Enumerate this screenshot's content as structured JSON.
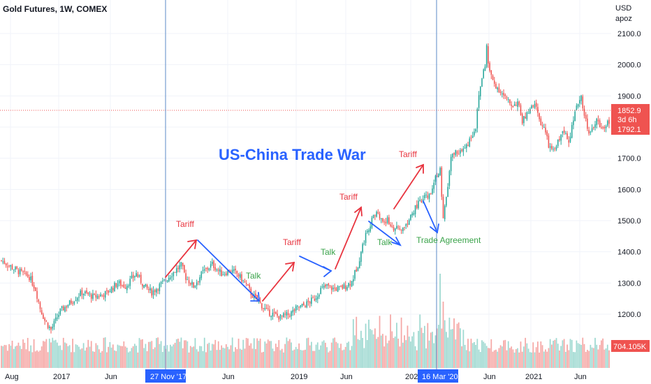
{
  "header": {
    "title": "Gold Futures, 1W, COMEX",
    "currency": "USD",
    "unit": "apoz"
  },
  "price_axis": {
    "ticks": [
      "2100.0",
      "2000.0",
      "1900.0",
      "1800.0",
      "1700.0",
      "1600.0",
      "1500.0",
      "1400.0",
      "1300.0",
      "1200.0"
    ],
    "badges": {
      "last_price": "1852.9",
      "countdown": "3d 6h",
      "close_price": "1792.1",
      "volume": "704.105K"
    }
  },
  "time_axis": {
    "labels": [
      "Aug",
      "2017",
      "Jun",
      "Jun",
      "2019",
      "Jun",
      "202",
      "Jun",
      "2021",
      "Jun"
    ],
    "highlighted": [
      "27 Nov '17",
      "16 Mar '20"
    ]
  },
  "annotations": {
    "main": "US-China Trade War",
    "tariff_1": "Tariff",
    "tariff_2": "Tariff",
    "tariff_3": "Tariff",
    "tariff_4": "Tariff",
    "talk_1": "Talk",
    "talk_2": "Talk",
    "talk_3": "Talk",
    "agreement": "Trade Agreement"
  },
  "colors": {
    "up": "#26a69a",
    "down": "#ef5350",
    "volume_up": "#9fd9d1",
    "volume_down": "#f5a8a6",
    "tariff": "#e8343f",
    "talk": "#2962ff",
    "talk_text": "#3aa34a",
    "marker": "#5b8ac7",
    "badge_blue": "#2962ff",
    "badge_red": "#ef5350"
  },
  "chart_data": {
    "type": "candlestick",
    "symbol": "Gold Futures",
    "interval": "1W",
    "ylim": [
      1130,
      2150
    ],
    "path": [
      [
        0,
        1372
      ],
      [
        10,
        1340
      ],
      [
        18,
        1320
      ],
      [
        22,
        1280
      ],
      [
        25,
        1220
      ],
      [
        28,
        1180
      ],
      [
        32,
        1150
      ],
      [
        38,
        1210
      ],
      [
        45,
        1240
      ],
      [
        52,
        1270
      ],
      [
        60,
        1255
      ],
      [
        68,
        1268
      ],
      [
        75,
        1300
      ],
      [
        80,
        1290
      ],
      [
        87,
        1330
      ],
      [
        92,
        1290
      ],
      [
        97,
        1270
      ],
      [
        104,
        1300
      ],
      [
        112,
        1340
      ],
      [
        116,
        1356
      ],
      [
        119,
        1318
      ],
      [
        124,
        1290
      ],
      [
        130,
        1335
      ],
      [
        136,
        1360
      ],
      [
        142,
        1330
      ],
      [
        148,
        1340
      ],
      [
        152,
        1330
      ],
      [
        157,
        1300
      ],
      [
        162,
        1260
      ],
      [
        166,
        1240
      ],
      [
        171,
        1210
      ],
      [
        175,
        1200
      ],
      [
        180,
        1190
      ],
      [
        186,
        1200
      ],
      [
        191,
        1220
      ],
      [
        196,
        1230
      ],
      [
        202,
        1250
      ],
      [
        206,
        1280
      ],
      [
        210,
        1290
      ],
      [
        214,
        1282
      ],
      [
        218,
        1282
      ],
      [
        222,
        1290
      ],
      [
        226,
        1305
      ],
      [
        230,
        1360
      ],
      [
        233,
        1420
      ],
      [
        236,
        1470
      ],
      [
        239,
        1500
      ],
      [
        242,
        1530
      ],
      [
        245,
        1500
      ],
      [
        249,
        1500
      ],
      [
        252,
        1480
      ],
      [
        256,
        1470
      ],
      [
        260,
        1478
      ],
      [
        262,
        1495
      ],
      [
        265,
        1520
      ],
      [
        268,
        1550
      ],
      [
        271,
        1560
      ],
      [
        274,
        1580
      ],
      [
        277,
        1580
      ],
      [
        279,
        1620
      ],
      [
        281,
        1650
      ],
      [
        283,
        1660
      ],
      [
        284,
        1580
      ],
      [
        285,
        1500
      ],
      [
        286,
        1540
      ],
      [
        288,
        1610
      ],
      [
        290,
        1700
      ],
      [
        293,
        1720
      ],
      [
        296,
        1720
      ],
      [
        299,
        1730
      ],
      [
        302,
        1760
      ],
      [
        304,
        1780
      ],
      [
        306,
        1800
      ],
      [
        308,
        1900
      ],
      [
        310,
        1960
      ],
      [
        312,
        2000
      ],
      [
        313,
        2060
      ],
      [
        314,
        2000
      ],
      [
        316,
        1960
      ],
      [
        318,
        1940
      ],
      [
        321,
        1920
      ],
      [
        324,
        1900
      ],
      [
        327,
        1880
      ],
      [
        330,
        1870
      ],
      [
        333,
        1880
      ],
      [
        336,
        1820
      ],
      [
        339,
        1840
      ],
      [
        342,
        1860
      ],
      [
        345,
        1870
      ],
      [
        347,
        1820
      ],
      [
        350,
        1800
      ],
      [
        353,
        1740
      ],
      [
        356,
        1720
      ],
      [
        358,
        1740
      ],
      [
        361,
        1780
      ],
      [
        364,
        1780
      ],
      [
        366,
        1760
      ],
      [
        368,
        1800
      ],
      [
        370,
        1840
      ],
      [
        372,
        1880
      ],
      [
        374,
        1900
      ],
      [
        376,
        1840
      ],
      [
        378,
        1800
      ],
      [
        380,
        1780
      ],
      [
        382,
        1800
      ],
      [
        384,
        1820
      ],
      [
        386,
        1810
      ],
      [
        388,
        1790
      ],
      [
        390,
        1800
      ],
      [
        392,
        1820
      ]
    ]
  }
}
